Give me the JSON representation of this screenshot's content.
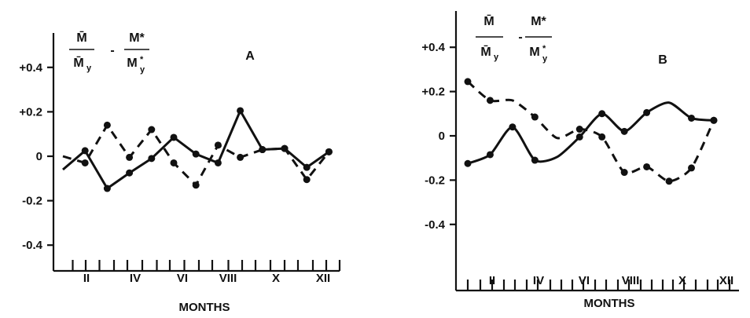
{
  "chart_data": [
    {
      "type": "line",
      "panel_label": "A",
      "xlabel": "MONTHS",
      "x_tick_labels": [
        "II",
        "IV",
        "VI",
        "VIII",
        "X",
        "XII"
      ],
      "ylim": [
        -0.5,
        0.55
      ],
      "y_ticks": [
        {
          "value": 0.4,
          "label": "+0.4"
        },
        {
          "value": 0.2,
          "label": "+0.2"
        },
        {
          "value": 0,
          "label": "0"
        },
        {
          "value": -0.2,
          "label": "-0.2"
        },
        {
          "value": -0.4,
          "label": "-0.4"
        }
      ],
      "legend": {
        "m1": "M̄",
        "my": "M̄",
        "my_sub": "y",
        "dash": "-",
        "m2": "M*",
        "m2y": "M",
        "m2y_sup": "*",
        "m2y_sub": "y"
      },
      "series": [
        {
          "style": "solid",
          "x": [
            0.5,
            1.5,
            2.5,
            3.5,
            4.5,
            5.5,
            6.5,
            7.5,
            8.5,
            9.5,
            10.5,
            11.5,
            12.5
          ],
          "y": [
            -0.06,
            0.025,
            -0.145,
            -0.075,
            -0.01,
            0.085,
            0.01,
            -0.03,
            0.205,
            0.03,
            0.035,
            -0.05,
            0.02
          ],
          "markers": [
            1,
            2,
            3,
            4,
            5,
            6,
            7,
            8,
            9,
            10,
            11,
            12
          ]
        },
        {
          "style": "dashed",
          "x": [
            0.5,
            1.5,
            2.5,
            3.5,
            4.5,
            5.5,
            6.5,
            7.5,
            8.5,
            9.5,
            10.5,
            11.5,
            12.5
          ],
          "y": [
            0.0,
            -0.03,
            0.14,
            -0.005,
            0.12,
            -0.03,
            -0.13,
            0.05,
            -0.005,
            0.03,
            0.035,
            -0.105,
            0.02
          ],
          "markers": [
            1,
            2,
            3,
            4,
            5,
            6,
            7,
            8,
            9,
            10,
            11,
            12
          ]
        }
      ]
    },
    {
      "type": "line",
      "panel_label": "B",
      "xlabel": "MONTHS",
      "x_tick_labels": [
        "II",
        "IV",
        "VI",
        "VIII",
        "X",
        "XII"
      ],
      "ylim": [
        -0.55,
        0.6
      ],
      "y_ticks": [
        {
          "value": 0.4,
          "label": "+0.4"
        },
        {
          "value": 0.2,
          "label": "+0.2"
        },
        {
          "value": 0,
          "label": "0"
        },
        {
          "value": -0.2,
          "label": "-0.2"
        },
        {
          "value": -0.4,
          "label": "-0.4"
        }
      ],
      "legend": {
        "m1": "M̄",
        "my": "M̄",
        "my_sub": "y",
        "dash": "-",
        "m2": "M*",
        "m2y": "M",
        "m2y_sup": "*",
        "m2y_sub": "y"
      },
      "series": [
        {
          "style": "solid",
          "x": [
            1,
            2,
            3,
            4,
            5,
            6,
            7,
            8,
            9,
            10,
            11,
            12
          ],
          "y": [
            -0.125,
            -0.085,
            0.04,
            -0.11,
            -0.095,
            -0.005,
            0.1,
            0.02,
            0.105,
            0.15,
            0.08,
            0.07
          ],
          "markers": [
            0,
            1,
            2,
            3,
            5,
            6,
            7,
            8,
            10,
            11
          ]
        },
        {
          "style": "dashed",
          "x": [
            1,
            2,
            3,
            4,
            5,
            6,
            7,
            8,
            9,
            10,
            11,
            12
          ],
          "y": [
            0.245,
            0.16,
            0.16,
            0.085,
            -0.01,
            0.03,
            -0.005,
            -0.165,
            -0.14,
            -0.205,
            -0.145,
            0.07
          ],
          "markers": [
            0,
            1,
            3,
            5,
            6,
            7,
            8,
            9,
            10,
            11
          ]
        }
      ]
    }
  ]
}
